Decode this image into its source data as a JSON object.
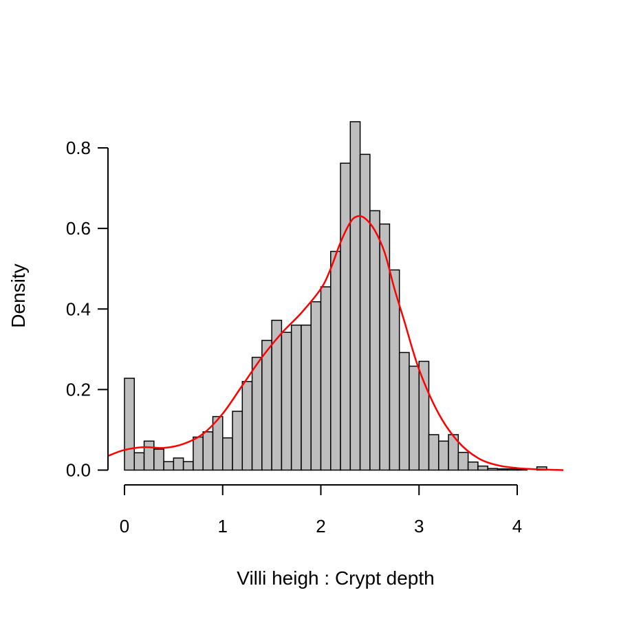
{
  "chart_data": {
    "type": "bar",
    "subtype": "histogram-with-density-curve",
    "xlabel": "Villi heigh : Crypt depth",
    "ylabel": "Density",
    "xlim": [
      -0.17,
      4.5
    ],
    "ylim": [
      0,
      0.9
    ],
    "x_ticks": [
      "0",
      "1",
      "2",
      "3",
      "4"
    ],
    "y_ticks": [
      "0.0",
      "0.2",
      "0.4",
      "0.6",
      "0.8"
    ],
    "bin_width": 0.1,
    "bin_starts": [
      0.0,
      0.1,
      0.2,
      0.3,
      0.4,
      0.5,
      0.6,
      0.7,
      0.8,
      0.9,
      1.0,
      1.1,
      1.2,
      1.3,
      1.4,
      1.5,
      1.6,
      1.7,
      1.8,
      1.9,
      2.0,
      2.1,
      2.2,
      2.3,
      2.4,
      2.5,
      2.6,
      2.7,
      2.8,
      2.9,
      3.0,
      3.1,
      3.2,
      3.3,
      3.4,
      3.5,
      3.6,
      3.7,
      3.8,
      3.9,
      4.0,
      4.1,
      4.2
    ],
    "values": [
      0.228,
      0.043,
      0.072,
      0.052,
      0.021,
      0.03,
      0.021,
      0.082,
      0.095,
      0.133,
      0.08,
      0.146,
      0.22,
      0.28,
      0.322,
      0.372,
      0.342,
      0.36,
      0.36,
      0.418,
      0.455,
      0.543,
      0.762,
      0.865,
      0.784,
      0.644,
      0.611,
      0.497,
      0.292,
      0.258,
      0.27,
      0.088,
      0.072,
      0.088,
      0.044,
      0.02,
      0.01,
      0.004,
      0.003,
      0.003,
      0.002,
      0.0,
      0.008
    ],
    "density_curve": {
      "x": [
        -0.17,
        0.0,
        0.2,
        0.4,
        0.6,
        0.8,
        1.0,
        1.2,
        1.4,
        1.6,
        1.8,
        2.0,
        2.1,
        2.2,
        2.3,
        2.37,
        2.45,
        2.55,
        2.65,
        2.75,
        2.85,
        3.0,
        3.2,
        3.4,
        3.6,
        3.8,
        4.0,
        4.2,
        4.47
      ],
      "y": [
        0.035,
        0.05,
        0.057,
        0.055,
        0.065,
        0.09,
        0.14,
        0.21,
        0.28,
        0.34,
        0.39,
        0.45,
        0.5,
        0.565,
        0.615,
        0.63,
        0.625,
        0.595,
        0.54,
        0.45,
        0.37,
        0.25,
        0.14,
        0.07,
        0.03,
        0.012,
        0.005,
        0.002,
        0.0
      ]
    },
    "grid": false,
    "legend": "none",
    "bar_color": "#bebebe",
    "curve_color": "#ff0000"
  }
}
